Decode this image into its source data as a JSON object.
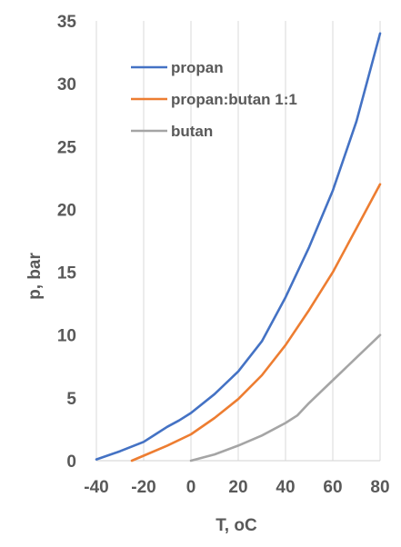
{
  "chart_data": {
    "type": "line",
    "xlabel": "T, oC",
    "ylabel": "p, bar",
    "xlim": [
      -40,
      80
    ],
    "ylim": [
      0,
      35
    ],
    "x_ticks": [
      -40,
      -20,
      0,
      20,
      40,
      60,
      80
    ],
    "y_ticks": [
      0,
      5,
      10,
      15,
      20,
      25,
      30,
      35
    ],
    "grid": "vertical",
    "legend_position": "top-left",
    "series": [
      {
        "name": "propan",
        "color": "#4472c4",
        "points": [
          [
            -40,
            0.1
          ],
          [
            -30,
            0.75
          ],
          [
            -20,
            1.5
          ],
          [
            -15,
            2.1
          ],
          [
            -10,
            2.7
          ],
          [
            -5,
            3.2
          ],
          [
            0,
            3.8
          ],
          [
            10,
            5.3
          ],
          [
            20,
            7.1
          ],
          [
            30,
            9.5
          ],
          [
            40,
            13.0
          ],
          [
            50,
            17.0
          ],
          [
            60,
            21.5
          ],
          [
            70,
            27.0
          ],
          [
            80,
            34.0
          ]
        ]
      },
      {
        "name": "propan:butan 1:1",
        "color": "#ed7d31",
        "points": [
          [
            -25,
            0.0
          ],
          [
            -20,
            0.4
          ],
          [
            -10,
            1.2
          ],
          [
            0,
            2.1
          ],
          [
            10,
            3.4
          ],
          [
            20,
            4.9
          ],
          [
            30,
            6.8
          ],
          [
            40,
            9.2
          ],
          [
            50,
            12.0
          ],
          [
            60,
            15.0
          ],
          [
            70,
            18.5
          ],
          [
            80,
            22.0
          ]
        ]
      },
      {
        "name": "butan",
        "color": "#a5a5a5",
        "points": [
          [
            0,
            0.0
          ],
          [
            10,
            0.5
          ],
          [
            20,
            1.2
          ],
          [
            30,
            2.0
          ],
          [
            40,
            3.0
          ],
          [
            45,
            3.6
          ],
          [
            50,
            4.6
          ],
          [
            60,
            6.4
          ],
          [
            70,
            8.2
          ],
          [
            80,
            10.0
          ]
        ]
      }
    ]
  }
}
